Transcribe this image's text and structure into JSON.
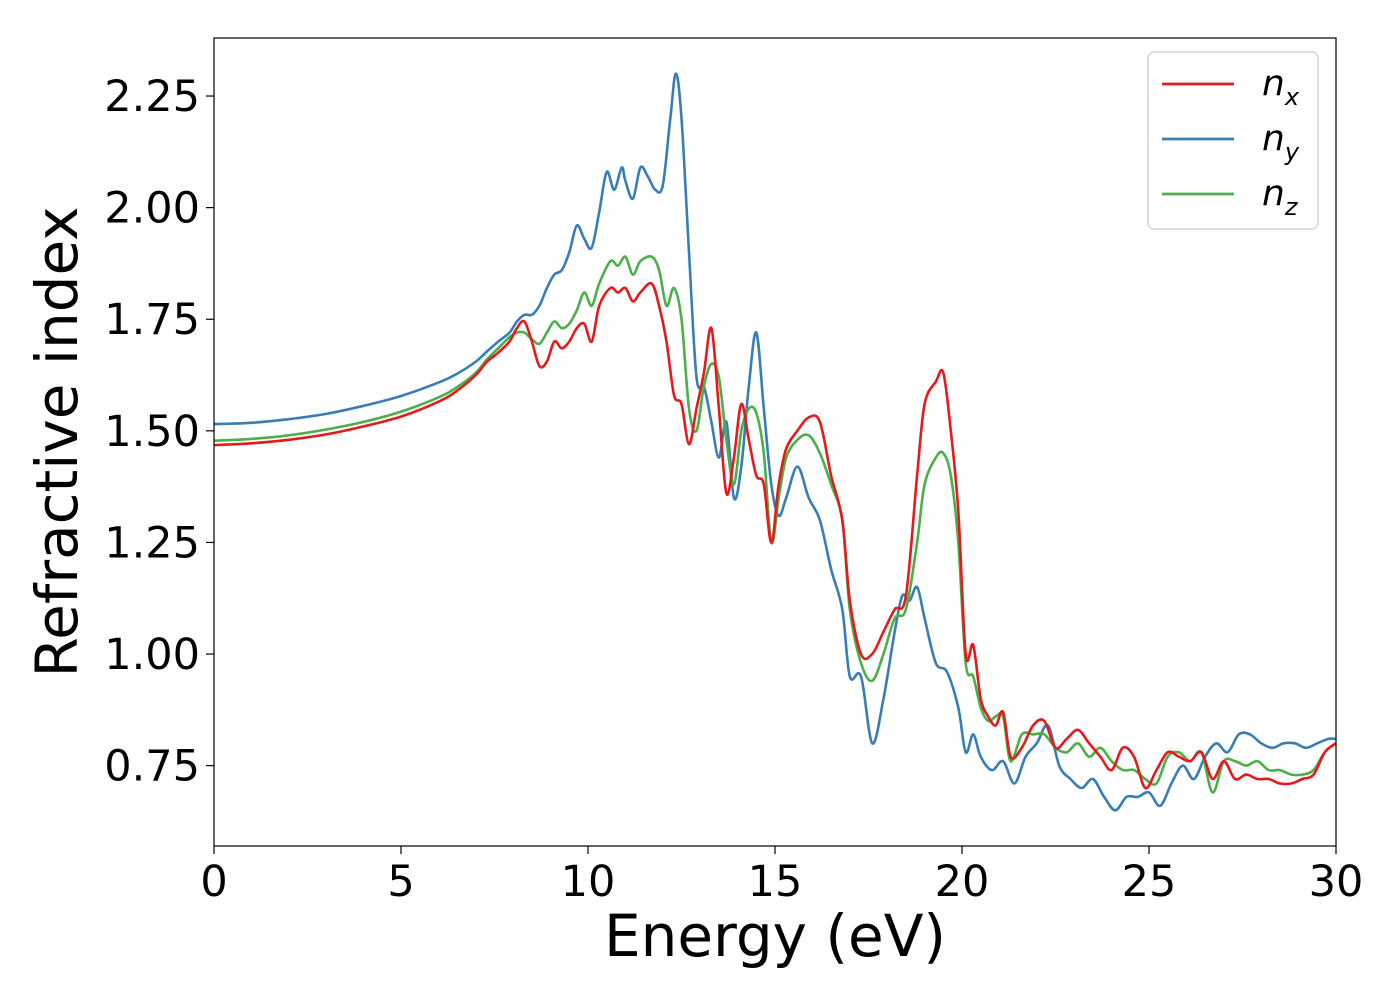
{
  "chart_data": {
    "type": "line",
    "title": "",
    "xlabel": "Energy (eV)",
    "ylabel": "Refractive index",
    "xlim": [
      0,
      30
    ],
    "ylim": [
      0.57,
      2.38
    ],
    "xticks": [
      0,
      5,
      10,
      15,
      20,
      25,
      30
    ],
    "xtick_labels": [
      "0",
      "5",
      "10",
      "15",
      "20",
      "25",
      "30"
    ],
    "yticks": [
      0.75,
      1.0,
      1.25,
      1.5,
      1.75,
      2.0,
      2.25
    ],
    "ytick_labels": [
      "0.75",
      "1.00",
      "1.25",
      "1.50",
      "1.75",
      "2.00",
      "2.25"
    ],
    "grid": false,
    "legend_position": "top-right",
    "series": [
      {
        "name": "n_x",
        "name_base": "n",
        "name_sub": "x",
        "color": "#e41a1c",
        "x": [
          0,
          1,
          2,
          3,
          4,
          5,
          6,
          6.5,
          7,
          7.3,
          7.6,
          7.9,
          8.1,
          8.3,
          8.5,
          8.7,
          8.9,
          9.1,
          9.3,
          9.5,
          9.7,
          9.9,
          10.1,
          10.3,
          10.6,
          10.8,
          11.0,
          11.2,
          11.4,
          11.7,
          11.9,
          12.1,
          12.3,
          12.5,
          12.7,
          12.9,
          13.1,
          13.3,
          13.5,
          13.7,
          13.9,
          14.1,
          14.3,
          14.5,
          14.7,
          14.9,
          15.1,
          15.3,
          15.6,
          15.9,
          16.2,
          16.5,
          16.8,
          17.0,
          17.3,
          17.6,
          17.9,
          18.2,
          18.5,
          18.8,
          19.0,
          19.3,
          19.5,
          19.7,
          19.9,
          20.1,
          20.3,
          20.5,
          20.7,
          20.9,
          21.1,
          21.3,
          21.6,
          21.9,
          22.2,
          22.5,
          22.8,
          23.1,
          23.4,
          23.7,
          24.0,
          24.3,
          24.6,
          24.9,
          25.2,
          25.5,
          25.8,
          26.1,
          26.4,
          26.7,
          27.0,
          27.3,
          27.6,
          27.9,
          28.2,
          28.5,
          28.8,
          29.1,
          29.4,
          29.7,
          30
        ],
        "y": [
          1.468,
          1.472,
          1.48,
          1.492,
          1.51,
          1.532,
          1.565,
          1.59,
          1.625,
          1.655,
          1.675,
          1.7,
          1.73,
          1.745,
          1.7,
          1.645,
          1.655,
          1.7,
          1.685,
          1.7,
          1.73,
          1.74,
          1.7,
          1.78,
          1.82,
          1.81,
          1.82,
          1.79,
          1.81,
          1.83,
          1.78,
          1.7,
          1.58,
          1.56,
          1.47,
          1.55,
          1.63,
          1.73,
          1.55,
          1.36,
          1.44,
          1.56,
          1.48,
          1.4,
          1.38,
          1.25,
          1.38,
          1.46,
          1.5,
          1.53,
          1.52,
          1.4,
          1.3,
          1.12,
          1.0,
          1.0,
          1.05,
          1.1,
          1.13,
          1.4,
          1.56,
          1.61,
          1.63,
          1.5,
          1.32,
          1.0,
          1.02,
          0.9,
          0.86,
          0.84,
          0.87,
          0.77,
          0.79,
          0.84,
          0.85,
          0.79,
          0.81,
          0.83,
          0.8,
          0.77,
          0.74,
          0.79,
          0.77,
          0.7,
          0.74,
          0.78,
          0.77,
          0.76,
          0.78,
          0.72,
          0.76,
          0.72,
          0.73,
          0.72,
          0.72,
          0.71,
          0.71,
          0.72,
          0.73,
          0.78,
          0.8
        ]
      },
      {
        "name": "n_y",
        "name_base": "n",
        "name_sub": "y",
        "color": "#377eb8",
        "x": [
          0,
          1,
          2,
          3,
          4,
          5,
          6,
          6.5,
          7,
          7.3,
          7.6,
          7.9,
          8.1,
          8.3,
          8.5,
          8.7,
          8.9,
          9.1,
          9.3,
          9.5,
          9.7,
          9.9,
          10.1,
          10.3,
          10.5,
          10.7,
          10.9,
          11.0,
          11.2,
          11.4,
          11.6,
          11.8,
          12.0,
          12.2,
          12.35,
          12.5,
          12.7,
          12.9,
          13.1,
          13.3,
          13.5,
          13.7,
          13.9,
          14.1,
          14.3,
          14.5,
          14.7,
          14.9,
          15.1,
          15.3,
          15.6,
          15.9,
          16.2,
          16.5,
          16.8,
          17.0,
          17.3,
          17.6,
          17.9,
          18.2,
          18.4,
          18.6,
          18.8,
          19.0,
          19.3,
          19.6,
          19.9,
          20.1,
          20.3,
          20.5,
          20.8,
          21.1,
          21.4,
          21.7,
          22.0,
          22.3,
          22.6,
          22.9,
          23.2,
          23.5,
          23.8,
          24.1,
          24.4,
          24.7,
          25.0,
          25.3,
          25.6,
          25.9,
          26.2,
          26.5,
          26.8,
          27.1,
          27.4,
          27.7,
          28.0,
          28.3,
          28.6,
          28.9,
          29.2,
          29.5,
          29.8,
          30
        ],
        "y": [
          1.515,
          1.518,
          1.526,
          1.538,
          1.556,
          1.578,
          1.608,
          1.628,
          1.655,
          1.678,
          1.7,
          1.72,
          1.745,
          1.76,
          1.76,
          1.78,
          1.82,
          1.85,
          1.86,
          1.9,
          1.96,
          1.93,
          1.91,
          1.99,
          2.08,
          2.04,
          2.09,
          2.06,
          2.02,
          2.09,
          2.07,
          2.04,
          2.05,
          2.2,
          2.3,
          2.2,
          1.9,
          1.62,
          1.6,
          1.52,
          1.44,
          1.52,
          1.35,
          1.42,
          1.6,
          1.72,
          1.55,
          1.38,
          1.31,
          1.35,
          1.42,
          1.35,
          1.3,
          1.19,
          1.1,
          0.95,
          0.95,
          0.8,
          0.9,
          1.05,
          1.13,
          1.12,
          1.15,
          1.08,
          0.98,
          0.96,
          0.88,
          0.78,
          0.82,
          0.77,
          0.74,
          0.76,
          0.71,
          0.77,
          0.8,
          0.84,
          0.75,
          0.72,
          0.7,
          0.72,
          0.68,
          0.65,
          0.68,
          0.68,
          0.69,
          0.66,
          0.71,
          0.75,
          0.72,
          0.77,
          0.8,
          0.78,
          0.82,
          0.82,
          0.8,
          0.79,
          0.8,
          0.8,
          0.79,
          0.8,
          0.81,
          0.81
        ]
      },
      {
        "name": "n_z",
        "name_base": "n",
        "name_sub": "z",
        "color": "#4daf4a",
        "x": [
          0,
          1,
          2,
          3,
          4,
          5,
          6,
          6.5,
          7,
          7.3,
          7.6,
          7.9,
          8.1,
          8.3,
          8.5,
          8.7,
          8.9,
          9.1,
          9.3,
          9.5,
          9.7,
          9.9,
          10.1,
          10.3,
          10.6,
          10.8,
          11.0,
          11.2,
          11.4,
          11.7,
          11.9,
          12.1,
          12.3,
          12.5,
          12.7,
          12.9,
          13.1,
          13.3,
          13.5,
          13.7,
          13.9,
          14.1,
          14.3,
          14.5,
          14.7,
          14.9,
          15.1,
          15.3,
          15.6,
          15.9,
          16.2,
          16.5,
          16.8,
          17.0,
          17.3,
          17.6,
          17.9,
          18.2,
          18.5,
          18.8,
          19.0,
          19.3,
          19.5,
          19.7,
          19.9,
          20.1,
          20.3,
          20.5,
          20.7,
          20.9,
          21.1,
          21.3,
          21.6,
          21.9,
          22.2,
          22.5,
          22.8,
          23.1,
          23.4,
          23.7,
          24.0,
          24.3,
          24.6,
          24.9,
          25.2,
          25.5,
          25.8,
          26.1,
          26.4,
          26.7,
          27.0,
          27.3,
          27.6,
          27.9,
          28.2,
          28.5,
          28.8,
          29.1,
          29.4,
          29.7,
          30
        ],
        "y": [
          1.478,
          1.482,
          1.49,
          1.503,
          1.52,
          1.543,
          1.575,
          1.598,
          1.63,
          1.66,
          1.685,
          1.71,
          1.72,
          1.72,
          1.705,
          1.695,
          1.72,
          1.745,
          1.73,
          1.74,
          1.77,
          1.81,
          1.78,
          1.83,
          1.88,
          1.87,
          1.89,
          1.85,
          1.88,
          1.89,
          1.86,
          1.78,
          1.82,
          1.75,
          1.55,
          1.5,
          1.6,
          1.65,
          1.62,
          1.48,
          1.38,
          1.5,
          1.55,
          1.54,
          1.45,
          1.25,
          1.35,
          1.44,
          1.48,
          1.49,
          1.45,
          1.38,
          1.3,
          1.1,
          0.98,
          0.94,
          1.0,
          1.08,
          1.1,
          1.25,
          1.38,
          1.44,
          1.45,
          1.4,
          1.25,
          0.98,
          0.95,
          0.88,
          0.85,
          0.86,
          0.86,
          0.76,
          0.82,
          0.82,
          0.82,
          0.79,
          0.78,
          0.8,
          0.77,
          0.79,
          0.76,
          0.74,
          0.74,
          0.72,
          0.71,
          0.77,
          0.78,
          0.76,
          0.78,
          0.69,
          0.76,
          0.76,
          0.75,
          0.76,
          0.74,
          0.74,
          0.73,
          0.73,
          0.74,
          0.78,
          0.8
        ]
      }
    ]
  }
}
